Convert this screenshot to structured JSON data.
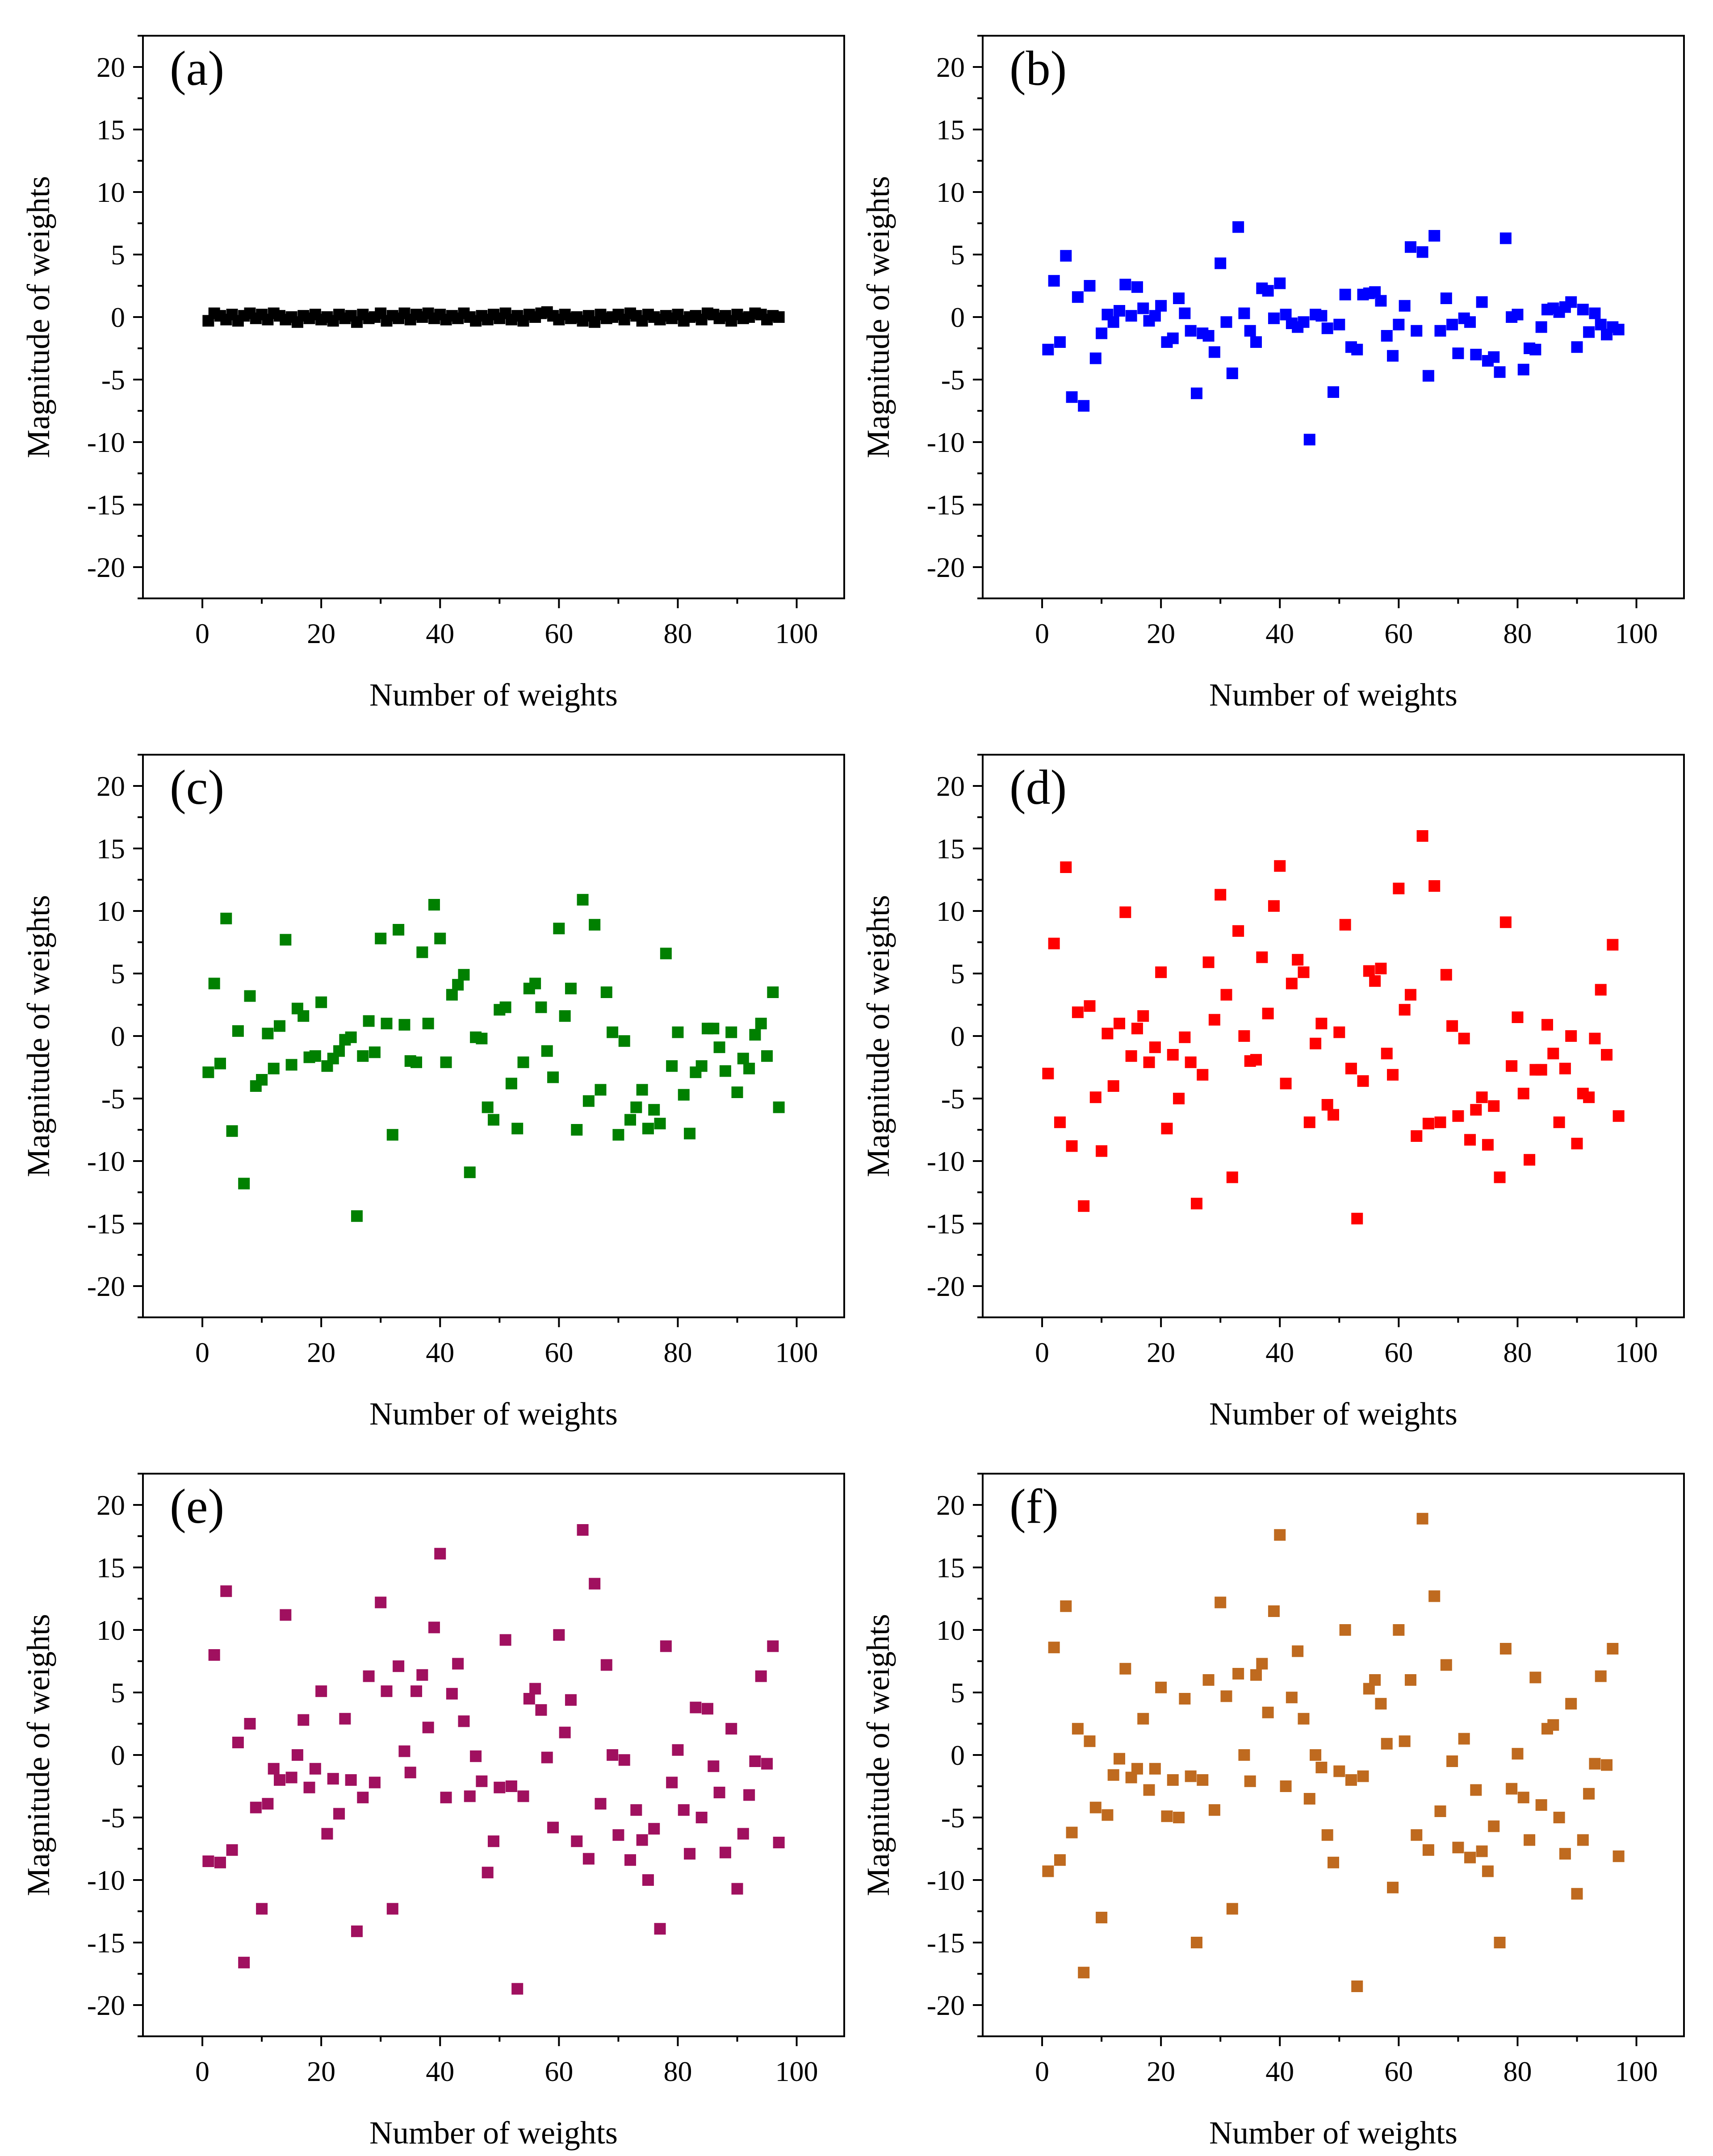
{
  "figure": {
    "panels": [
      "a",
      "b",
      "c",
      "d",
      "e",
      "f"
    ]
  },
  "chart_data": [
    {
      "id": "a",
      "type": "scatter",
      "panel_label": "(a)",
      "color": "#000000",
      "xlabel": "Number of weights",
      "ylabel": "Magnitude of weights",
      "xlim": [
        -10,
        108
      ],
      "ylim": [
        -22.5,
        22.5
      ],
      "xticks": [
        0,
        20,
        40,
        60,
        80,
        100
      ],
      "yticks": [
        20,
        15,
        10,
        5,
        0,
        -5,
        -10,
        -15,
        -20
      ],
      "x": [
        1,
        2,
        3,
        4,
        5,
        6,
        7,
        8,
        9,
        10,
        11,
        12,
        13,
        14,
        15,
        16,
        17,
        18,
        19,
        20,
        21,
        22,
        23,
        24,
        25,
        26,
        27,
        28,
        29,
        30,
        31,
        32,
        33,
        34,
        35,
        36,
        37,
        38,
        39,
        40,
        41,
        42,
        43,
        44,
        45,
        46,
        47,
        48,
        49,
        50,
        51,
        52,
        53,
        54,
        55,
        56,
        57,
        58,
        59,
        60,
        61,
        62,
        63,
        64,
        65,
        66,
        67,
        68,
        69,
        70,
        71,
        72,
        73,
        74,
        75,
        76,
        77,
        78,
        79,
        80,
        81,
        82,
        83,
        84,
        85,
        86,
        87,
        88,
        89,
        90,
        91,
        92,
        93,
        94,
        95,
        96,
        97
      ],
      "y": [
        -0.3,
        0.3,
        0.1,
        -0.2,
        0.2,
        -0.3,
        0.1,
        0.3,
        -0.1,
        0.2,
        -0.2,
        0.3,
        0.1,
        -0.2,
        0,
        -0.4,
        0.1,
        -0.1,
        0.2,
        -0.2,
        0,
        -0.3,
        0.2,
        -0.1,
        0.1,
        -0.4,
        0.2,
        -0.1,
        0,
        0.3,
        -0.3,
        0.1,
        -0.1,
        0.3,
        -0.2,
        0.2,
        0,
        0.3,
        -0.1,
        0.2,
        -0.2,
        0.1,
        -0.1,
        0.3,
        0,
        -0.3,
        0.1,
        -0.2,
        0.2,
        -0.1,
        0.3,
        -0.2,
        0.1,
        -0.3,
        0.2,
        0,
        0.3,
        0.4,
        0.1,
        -0.2,
        0.2,
        -0.1,
        0,
        -0.3,
        0.1,
        -0.4,
        0.2,
        -0.1,
        0,
        0.2,
        -0.2,
        0.3,
        0.1,
        -0.3,
        0.2,
        0,
        -0.2,
        0.1,
        -0.1,
        0.2,
        -0.3,
        0,
        0.1,
        -0.2,
        0.3,
        0.2,
        -0.1,
        0.1,
        -0.3,
        0.2,
        -0.1,
        0,
        0.3,
        0.2,
        -0.2,
        0.1,
        0
      ]
    },
    {
      "id": "b",
      "type": "scatter",
      "panel_label": "(b)",
      "color": "#0000ff",
      "xlabel": "Number of weights",
      "ylabel": "Magnitude of weights",
      "xlim": [
        -10,
        108
      ],
      "ylim": [
        -22.5,
        22.5
      ],
      "xticks": [
        0,
        20,
        40,
        60,
        80,
        100
      ],
      "yticks": [
        20,
        15,
        10,
        5,
        0,
        -5,
        -10,
        -15,
        -20
      ],
      "x": [
        1,
        2,
        3,
        4,
        5,
        6,
        7,
        8,
        9,
        10,
        11,
        12,
        13,
        14,
        15,
        16,
        17,
        18,
        19,
        20,
        21,
        22,
        23,
        24,
        25,
        26,
        27,
        28,
        29,
        30,
        31,
        32,
        33,
        34,
        35,
        36,
        37,
        38,
        39,
        40,
        41,
        42,
        43,
        44,
        45,
        46,
        47,
        48,
        49,
        50,
        51,
        52,
        53,
        54,
        55,
        56,
        57,
        58,
        59,
        60,
        61,
        62,
        63,
        64,
        65,
        66,
        67,
        68,
        69,
        70,
        71,
        72,
        73,
        74,
        75,
        76,
        77,
        78,
        79,
        80,
        81,
        82,
        83,
        84,
        85,
        86,
        87,
        88,
        89,
        90,
        91,
        92,
        93,
        94,
        95,
        96,
        97
      ],
      "y": [
        -2.6,
        2.9,
        -2,
        4.9,
        -6.4,
        1.6,
        -7.1,
        2.5,
        -3.3,
        -1.3,
        0.2,
        -0.4,
        0.5,
        2.6,
        0.1,
        2.4,
        0.7,
        -0.3,
        0.1,
        0.9,
        -2,
        -1.7,
        1.5,
        0.3,
        -1.1,
        -6.1,
        -1.3,
        -1.5,
        -2.8,
        4.3,
        -0.4,
        -4.5,
        7.2,
        0.3,
        -1.1,
        -2,
        2.3,
        2.1,
        -0.1,
        2.7,
        0.2,
        -0.5,
        -0.8,
        -0.4,
        -9.8,
        0.2,
        0.1,
        -0.9,
        -6,
        -0.6,
        1.8,
        -2.4,
        -2.6,
        1.8,
        1.9,
        2,
        1.3,
        -1.5,
        -3.1,
        -0.6,
        0.9,
        5.6,
        -1.1,
        5.2,
        -4.7,
        6.5,
        -1.1,
        1.5,
        -0.6,
        -2.9,
        -0.1,
        -0.4,
        -3,
        1.2,
        -3.5,
        -3.2,
        -4.4,
        6.3,
        0,
        0.2,
        -4.2,
        -2.5,
        -2.6,
        -0.8,
        0.6,
        0.7,
        0.4,
        0.8,
        1.2,
        -2.4,
        0.6,
        -1.2,
        0.3,
        -0.6,
        -1.4,
        -0.8,
        -1
      ]
    },
    {
      "id": "c",
      "type": "scatter",
      "panel_label": "(c)",
      "color": "#008000",
      "xlabel": "Number of weights",
      "ylabel": "Magnitude of weights",
      "xlim": [
        -10,
        108
      ],
      "ylim": [
        -22.5,
        22.5
      ],
      "xticks": [
        0,
        20,
        40,
        60,
        80,
        100
      ],
      "yticks": [
        20,
        15,
        10,
        5,
        0,
        -5,
        -10,
        -15,
        -20
      ],
      "x": [
        1,
        2,
        3,
        4,
        5,
        6,
        7,
        8,
        9,
        10,
        11,
        12,
        13,
        14,
        15,
        16,
        17,
        18,
        19,
        20,
        21,
        22,
        23,
        24,
        25,
        26,
        27,
        28,
        29,
        30,
        31,
        32,
        33,
        34,
        35,
        36,
        37,
        38,
        39,
        40,
        41,
        42,
        43,
        44,
        45,
        46,
        47,
        48,
        49,
        50,
        51,
        52,
        53,
        54,
        55,
        56,
        57,
        58,
        59,
        60,
        61,
        62,
        63,
        64,
        65,
        66,
        67,
        68,
        69,
        70,
        71,
        72,
        73,
        74,
        75,
        76,
        77,
        78,
        79,
        80,
        81,
        82,
        83,
        84,
        85,
        86,
        87,
        88,
        89,
        90,
        91,
        92,
        93,
        94,
        95,
        96,
        97
      ],
      "y": [
        -2.9,
        4.2,
        -2.2,
        9.4,
        -7.6,
        0.4,
        -11.8,
        3.2,
        -4,
        -3.5,
        0.2,
        -2.6,
        0.8,
        7.7,
        -2.3,
        2.2,
        1.6,
        -1.7,
        -1.6,
        2.7,
        -2.4,
        -1.8,
        -1.2,
        -0.3,
        -0.1,
        -14.4,
        -1.6,
        1.2,
        -1.3,
        7.8,
        1,
        -7.9,
        8.5,
        0.9,
        -2,
        -2.1,
        6.7,
        1,
        10.5,
        7.8,
        -2.1,
        3.3,
        4.1,
        4.9,
        -10.9,
        -0.1,
        -0.2,
        -5.7,
        -6.7,
        2.1,
        2.3,
        -3.8,
        -7.4,
        -2.1,
        3.8,
        4.2,
        2.3,
        -1.2,
        -3.3,
        8.6,
        1.6,
        3.8,
        -7.5,
        10.9,
        -5.2,
        8.9,
        -4.3,
        3.5,
        0.3,
        -7.9,
        -0.4,
        -6.7,
        -5.7,
        -4.3,
        -7.4,
        -5.9,
        -7,
        6.6,
        -2.4,
        0.3,
        -4.7,
        -7.8,
        -2.9,
        -2.4,
        0.6,
        0.6,
        -0.9,
        -2.8,
        0.3,
        -4.5,
        -1.8,
        -2.6,
        0.1,
        1,
        -1.6,
        3.5,
        -5.7
      ]
    },
    {
      "id": "d",
      "type": "scatter",
      "panel_label": "(d)",
      "color": "#ff0000",
      "xlabel": "Number of weights",
      "ylabel": "Magnitude of weights",
      "xlim": [
        -10,
        108
      ],
      "ylim": [
        -22.5,
        22.5
      ],
      "xticks": [
        0,
        20,
        40,
        60,
        80,
        100
      ],
      "yticks": [
        20,
        15,
        10,
        5,
        0,
        -5,
        -10,
        -15,
        -20
      ],
      "x": [
        1,
        2,
        3,
        4,
        5,
        6,
        7,
        8,
        9,
        10,
        11,
        12,
        13,
        14,
        15,
        16,
        17,
        18,
        19,
        20,
        21,
        22,
        23,
        24,
        25,
        26,
        27,
        28,
        29,
        30,
        31,
        32,
        33,
        34,
        35,
        36,
        37,
        38,
        39,
        40,
        41,
        42,
        43,
        44,
        45,
        46,
        47,
        48,
        49,
        50,
        51,
        52,
        53,
        54,
        55,
        56,
        57,
        58,
        59,
        60,
        61,
        62,
        63,
        64,
        65,
        66,
        67,
        68,
        69,
        70,
        71,
        72,
        73,
        74,
        75,
        76,
        77,
        78,
        79,
        80,
        81,
        82,
        83,
        84,
        85,
        86,
        87,
        88,
        89,
        90,
        91,
        92,
        93,
        94,
        95,
        96,
        97
      ],
      "y": [
        -3,
        7.4,
        -6.9,
        13.5,
        -8.8,
        1.9,
        -13.6,
        2.4,
        -4.9,
        -9.2,
        0.2,
        -4,
        1,
        9.9,
        -1.6,
        0.6,
        1.6,
        -2.1,
        -0.9,
        5.1,
        -7.4,
        -1.5,
        -5,
        -0.1,
        -2.1,
        -13.4,
        -3.1,
        5.9,
        1.3,
        11.3,
        3.3,
        -11.3,
        8.4,
        0,
        -2,
        -1.9,
        6.3,
        1.8,
        10.4,
        13.6,
        -3.8,
        4.2,
        6.1,
        5.1,
        -6.9,
        -0.6,
        1,
        -5.5,
        -6.3,
        0.3,
        8.9,
        -2.6,
        -14.6,
        -3.6,
        5.2,
        4.4,
        5.4,
        -1.4,
        -3.1,
        11.8,
        2.1,
        3.3,
        -8,
        16,
        -7,
        12,
        -6.9,
        4.9,
        0.8,
        -6.4,
        -0.2,
        -8.3,
        -5.9,
        -4.9,
        -8.7,
        -5.6,
        -11.3,
        9.1,
        -2.4,
        1.5,
        -4.6,
        -9.9,
        -2.7,
        -2.7,
        0.9,
        -1.4,
        -6.9,
        -2.6,
        0,
        -8.6,
        -4.6,
        -4.9,
        -0.2,
        3.7,
        -1.5,
        7.3,
        -6.4
      ]
    },
    {
      "id": "e",
      "type": "scatter",
      "panel_label": "(e)",
      "color": "#a0105f",
      "xlabel": "Number of weights",
      "ylabel": "Magnitude of weights",
      "xlim": [
        -10,
        108
      ],
      "ylim": [
        -22.5,
        22.5
      ],
      "xticks": [
        0,
        20,
        40,
        60,
        80,
        100
      ],
      "yticks": [
        20,
        15,
        10,
        5,
        0,
        -5,
        -10,
        -15,
        -20
      ],
      "x": [
        1,
        2,
        3,
        4,
        5,
        6,
        7,
        8,
        9,
        10,
        11,
        12,
        13,
        14,
        15,
        16,
        17,
        18,
        19,
        20,
        21,
        22,
        23,
        24,
        25,
        26,
        27,
        28,
        29,
        30,
        31,
        32,
        33,
        34,
        35,
        36,
        37,
        38,
        39,
        40,
        41,
        42,
        43,
        44,
        45,
        46,
        47,
        48,
        49,
        50,
        51,
        52,
        53,
        54,
        55,
        56,
        57,
        58,
        59,
        60,
        61,
        62,
        63,
        64,
        65,
        66,
        67,
        68,
        69,
        70,
        71,
        72,
        73,
        74,
        75,
        76,
        77,
        78,
        79,
        80,
        81,
        82,
        83,
        84,
        85,
        86,
        87,
        88,
        89,
        90,
        91,
        92,
        93,
        94,
        95,
        96,
        97
      ],
      "y": [
        -8.5,
        8,
        -8.6,
        13.1,
        -7.6,
        1,
        -16.6,
        2.5,
        -4.2,
        -12.3,
        -3.9,
        -1.1,
        -2,
        11.2,
        -1.8,
        0,
        2.8,
        -2.6,
        -1.1,
        5.1,
        -6.3,
        -1.9,
        -4.7,
        2.9,
        -2,
        -14.1,
        -3.4,
        6.3,
        -2.2,
        12.2,
        5.1,
        -12.3,
        7.1,
        0.3,
        -1.4,
        5.1,
        6.4,
        2.2,
        10.2,
        16.1,
        -3.4,
        4.9,
        7.3,
        2.7,
        -3.3,
        -0.1,
        -2.1,
        -9.4,
        -6.9,
        -2.6,
        9.2,
        -2.5,
        -18.7,
        -3.3,
        4.5,
        5.3,
        3.6,
        -0.2,
        -5.8,
        9.6,
        1.8,
        4.4,
        -6.9,
        18,
        -8.3,
        13.7,
        -3.9,
        7.2,
        0,
        -6.4,
        -0.4,
        -8.4,
        -4.4,
        -6.8,
        -10,
        -5.9,
        -13.9,
        8.7,
        -2.2,
        0.4,
        -4.4,
        -7.9,
        3.8,
        -5,
        3.7,
        -0.9,
        -3,
        -7.8,
        2.1,
        -10.7,
        -6.3,
        -3.2,
        -0.5,
        6.3,
        -0.7,
        8.7,
        -7
      ]
    },
    {
      "id": "f",
      "type": "scatter",
      "panel_label": "(f)",
      "color": "#bf6a1f",
      "xlabel": "Number of weights",
      "ylabel": "Magnitude of weights",
      "xlim": [
        -10,
        108
      ],
      "ylim": [
        -22.5,
        22.5
      ],
      "xticks": [
        0,
        20,
        40,
        60,
        80,
        100
      ],
      "yticks": [
        20,
        15,
        10,
        5,
        0,
        -5,
        -10,
        -15,
        -20
      ],
      "x": [
        1,
        2,
        3,
        4,
        5,
        6,
        7,
        8,
        9,
        10,
        11,
        12,
        13,
        14,
        15,
        16,
        17,
        18,
        19,
        20,
        21,
        22,
        23,
        24,
        25,
        26,
        27,
        28,
        29,
        30,
        31,
        32,
        33,
        34,
        35,
        36,
        37,
        38,
        39,
        40,
        41,
        42,
        43,
        44,
        45,
        46,
        47,
        48,
        49,
        50,
        51,
        52,
        53,
        54,
        55,
        56,
        57,
        58,
        59,
        60,
        61,
        62,
        63,
        64,
        65,
        66,
        67,
        68,
        69,
        70,
        71,
        72,
        73,
        74,
        75,
        76,
        77,
        78,
        79,
        80,
        81,
        82,
        83,
        84,
        85,
        86,
        87,
        88,
        89,
        90,
        91,
        92,
        93,
        94,
        95,
        96,
        97
      ],
      "y": [
        -9.3,
        8.6,
        -8.4,
        11.9,
        -6.2,
        2.1,
        -17.4,
        1.1,
        -4.2,
        -13,
        -4.8,
        -1.6,
        -0.3,
        6.9,
        -1.8,
        -1.1,
        2.9,
        -2.8,
        -1.1,
        5.4,
        -4.9,
        -2,
        -5,
        4.5,
        -1.7,
        -15,
        -2,
        6,
        -4.4,
        12.2,
        4.7,
        -12.3,
        6.5,
        0,
        -2.1,
        6.4,
        7.3,
        3.4,
        11.5,
        17.6,
        -2.5,
        4.6,
        8.3,
        2.9,
        -3.5,
        0,
        -1,
        -6.4,
        -8.6,
        -1.3,
        10,
        -2,
        -18.5,
        -1.7,
        5.3,
        6,
        4.1,
        0.9,
        -10.6,
        10,
        1.1,
        6,
        -6.4,
        18.9,
        -7.6,
        12.7,
        -4.5,
        7.2,
        -0.5,
        -7.4,
        1.3,
        -8.2,
        -2.8,
        -7.7,
        -9.3,
        -5.7,
        -15,
        8.5,
        -2.7,
        0.1,
        -3.4,
        -6.8,
        6.2,
        -4,
        2.1,
        2.4,
        -5,
        -7.9,
        4.1,
        -11.1,
        -6.8,
        -3.1,
        -0.7,
        6.3,
        -0.8,
        8.5,
        -8.1
      ]
    }
  ]
}
